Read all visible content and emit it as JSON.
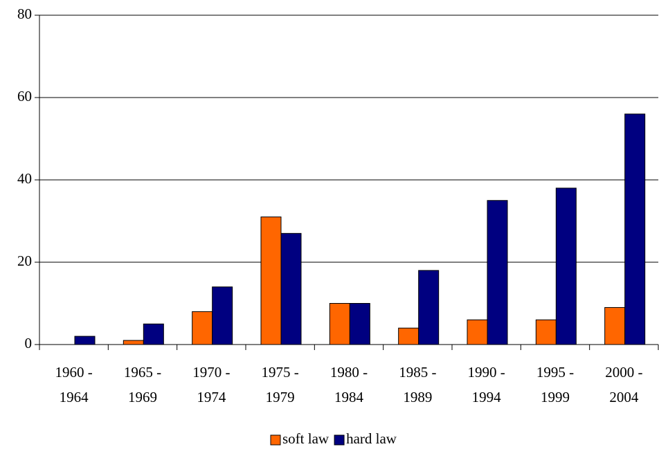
{
  "chart_data": {
    "type": "bar",
    "categories": [
      [
        "1960 -",
        "1964"
      ],
      [
        "1965 -",
        "1969"
      ],
      [
        "1970 -",
        "1974"
      ],
      [
        "1975 -",
        "1979"
      ],
      [
        "1980 -",
        "1984"
      ],
      [
        "1985 -",
        "1989"
      ],
      [
        "1990 -",
        "1994"
      ],
      [
        "1995 -",
        "1999"
      ],
      [
        "2000 -",
        "2004"
      ]
    ],
    "series": [
      {
        "name": "soft law",
        "color": "#ff6600",
        "values": [
          0,
          1,
          8,
          31,
          10,
          4,
          6,
          6,
          9
        ]
      },
      {
        "name": "hard law",
        "color": "#000080",
        "values": [
          2,
          5,
          14,
          27,
          10,
          18,
          35,
          38,
          56
        ]
      }
    ],
    "ylim": [
      0,
      80
    ],
    "yticks": [
      0,
      20,
      40,
      60,
      80
    ],
    "grid": true,
    "legend": "bottom"
  }
}
